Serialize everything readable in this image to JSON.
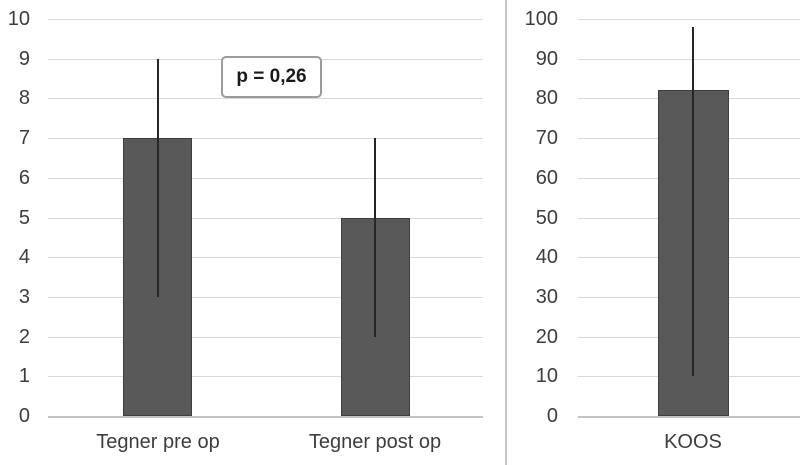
{
  "figure": {
    "background": "#ffffff"
  },
  "colors": {
    "bar_fill": "#595959",
    "bar_border": "#3f3f3f",
    "error_bar": "#262626",
    "gridline": "#d9d9d9",
    "axis_line": "#c3c3c3",
    "text": "#3d3d3d",
    "annotation_border": "#9b9b9b",
    "annotation_bg": "#ffffff",
    "divider": "#c6c6c6"
  },
  "chart_data": [
    {
      "type": "bar",
      "title": "",
      "xlabel": "",
      "ylabel": "",
      "categories": [
        "Tegner pre op",
        "Tegner post op"
      ],
      "values": [
        7,
        5
      ],
      "error_low": [
        3,
        2
      ],
      "error_high": [
        9,
        7
      ],
      "ylim": [
        0,
        10
      ],
      "yticks": [
        0,
        1,
        2,
        3,
        4,
        5,
        6,
        7,
        8,
        9,
        10
      ],
      "grid": true,
      "legend": false,
      "annotation": {
        "text": "p = 0,26"
      }
    },
    {
      "type": "bar",
      "title": "",
      "xlabel": "",
      "ylabel": "",
      "categories": [
        "KOOS"
      ],
      "values": [
        82
      ],
      "error_low": [
        10
      ],
      "error_high": [
        98
      ],
      "ylim": [
        0,
        100
      ],
      "yticks": [
        0,
        10,
        20,
        30,
        40,
        50,
        60,
        70,
        80,
        90,
        100
      ],
      "grid": true,
      "legend": false
    }
  ]
}
